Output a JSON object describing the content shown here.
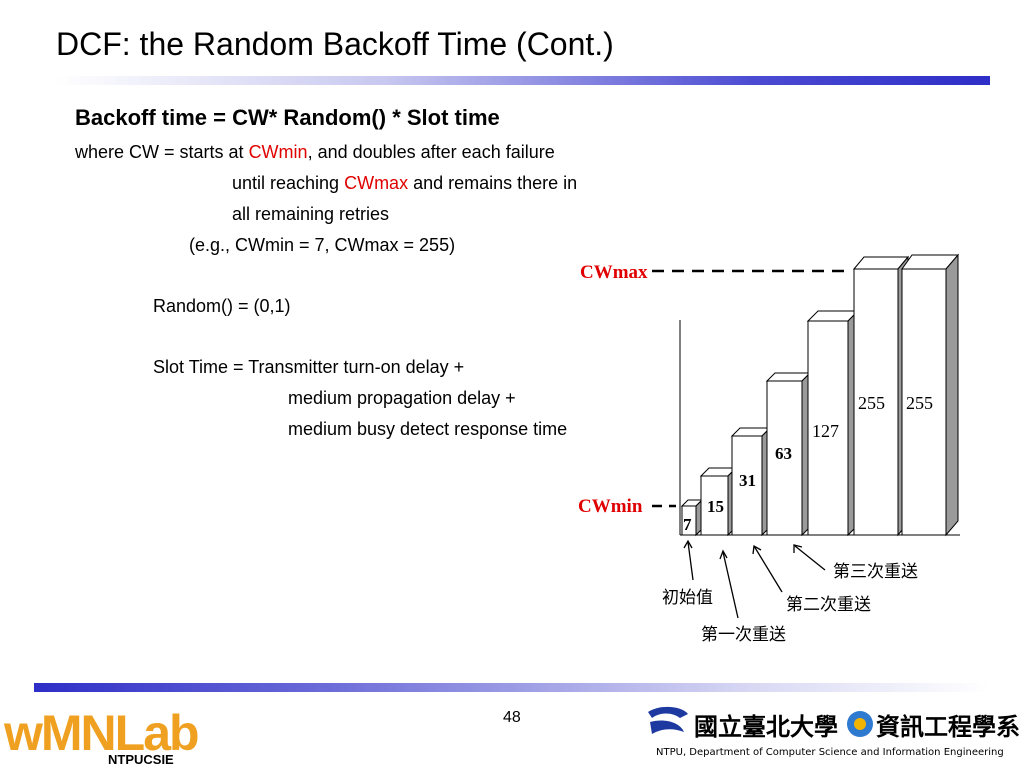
{
  "title": "DCF: the Random Backoff Time (Cont.)",
  "formula": "Backoff time = CW* Random() * Slot time",
  "where_line": {
    "pre": "where  CW = starts at ",
    "red": "CWmin",
    "post": ", and doubles after each failure"
  },
  "until_line": {
    "pre": "until reaching ",
    "red": "CWmax",
    "post": " and remains there in"
  },
  "remaining_line": "all remaining retries",
  "example_line": "(e.g., CWmin = 7, CWmax = 255)",
  "random_line": "Random() = (0,1)",
  "slot_lines": [
    "Slot Time = Transmitter turn-on delay +",
    "medium propagation delay +",
    "medium busy detect response time"
  ],
  "diagram": {
    "cwmax_label": "CWmax",
    "cwmin_label": "CWmin",
    "bars": [
      "7",
      "15",
      "31",
      "63",
      "127",
      "255",
      "255"
    ],
    "annotations": [
      "初始值",
      "第一次重送",
      "第二次重送",
      "第三次重送"
    ]
  },
  "page_number": "48",
  "logo_left": {
    "main": "wMNLab",
    "sub": "NTPUCSIE"
  },
  "logo_right": {
    "name": "國立臺北大學",
    "dept": "資訊工程學系",
    "caption": "NTPU, Department of Computer Science and Information Engineering"
  },
  "colors": {
    "accent_red": "#e00000",
    "rule_blue": "#2e2ec8",
    "logo_orange": "#f0a020"
  }
}
